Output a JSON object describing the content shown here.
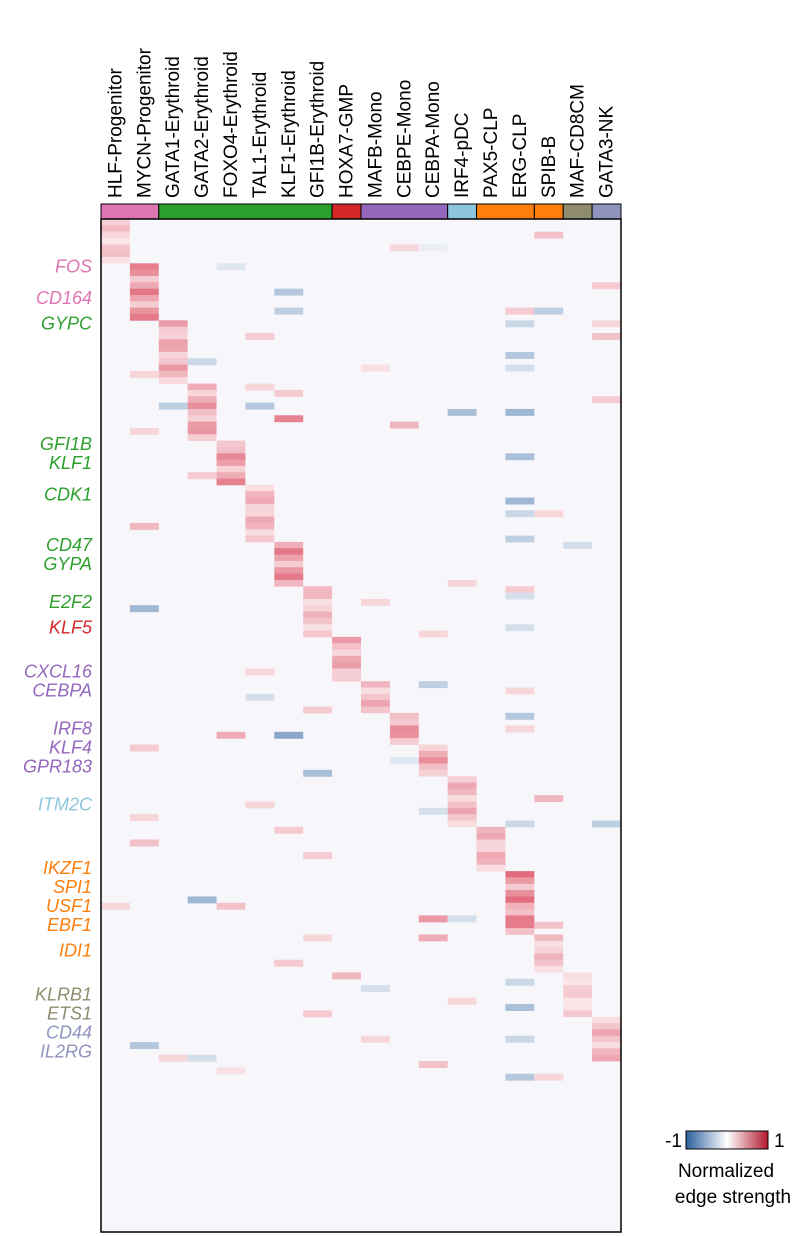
{
  "chart_data": {
    "type": "heatmap",
    "title": "",
    "columns": [
      "HLF-Progenitor",
      "MYCN-Progenitor",
      "GATA1-Erythroid",
      "GATA2-Erythroid",
      "FOXO4-Erythroid",
      "TAL1-Erythroid",
      "KLF1-Erythroid",
      "GFI1B-Erythroid",
      "HOXA7-GMP",
      "MAFB-Mono",
      "CEBPE-Mono",
      "CEBPA-Mono",
      "IRF4-pDC",
      "PAX5-CLP",
      "ERG-CLP",
      "SPIB-B",
      "MAF-CD8CM",
      "GATA3-NK"
    ],
    "groups": [
      {
        "name": "Progenitor",
        "columns": [
          0,
          1
        ],
        "color": "#df74b3"
      },
      {
        "name": "Erythroid",
        "columns": [
          2,
          3,
          4,
          5,
          6,
          7
        ],
        "color": "#2ca02c"
      },
      {
        "name": "GMP",
        "columns": [
          8
        ],
        "color": "#d62728"
      },
      {
        "name": "Mono",
        "columns": [
          9,
          10,
          11
        ],
        "color": "#9467bd"
      },
      {
        "name": "pDC",
        "columns": [
          12
        ],
        "color": "#8ec5de"
      },
      {
        "name": "CLP",
        "columns": [
          13,
          14
        ],
        "color": "#ff7f0e"
      },
      {
        "name": "B",
        "columns": [
          15
        ],
        "color": "#ff7f0e"
      },
      {
        "name": "CD8CM",
        "columns": [
          16
        ],
        "color": "#8f8c6e"
      },
      {
        "name": "NK",
        "columns": [
          17
        ],
        "color": "#8f94bf"
      }
    ],
    "n_rows": 160,
    "row_labels": [
      {
        "text": "FOS",
        "row": 7,
        "color": "#df74b3"
      },
      {
        "text": "CD164",
        "row": 12,
        "color": "#df74b3"
      },
      {
        "text": "GYPC",
        "row": 16,
        "color": "#2ca02c"
      },
      {
        "text": "GFI1B",
        "row": 35,
        "color": "#2ca02c"
      },
      {
        "text": "KLF1",
        "row": 38,
        "color": "#2ca02c"
      },
      {
        "text": "CDK1",
        "row": 43,
        "color": "#2ca02c"
      },
      {
        "text": "CD47",
        "row": 51,
        "color": "#2ca02c"
      },
      {
        "text": "GYPA",
        "row": 54,
        "color": "#2ca02c"
      },
      {
        "text": "E2F2",
        "row": 60,
        "color": "#2ca02c"
      },
      {
        "text": "KLF5",
        "row": 64,
        "color": "#d62728"
      },
      {
        "text": "CXCL16",
        "row": 71,
        "color": "#9467bd"
      },
      {
        "text": "CEBPA",
        "row": 74,
        "color": "#9467bd"
      },
      {
        "text": "IRF8",
        "row": 80,
        "color": "#9467bd"
      },
      {
        "text": "KLF4",
        "row": 83,
        "color": "#9467bd"
      },
      {
        "text": "GPR183",
        "row": 86,
        "color": "#9467bd"
      },
      {
        "text": "ITM2C",
        "row": 92,
        "color": "#8ec5de"
      },
      {
        "text": "IKZF1",
        "row": 102,
        "color": "#ff7f0e"
      },
      {
        "text": "SPI1",
        "row": 105,
        "color": "#ff7f0e"
      },
      {
        "text": "USF1",
        "row": 108,
        "color": "#ff7f0e"
      },
      {
        "text": "EBF1",
        "row": 111,
        "color": "#ff7f0e"
      },
      {
        "text": "IDI1",
        "row": 115,
        "color": "#ff7f0e"
      },
      {
        "text": "KLRB1",
        "row": 122,
        "color": "#8f8c6e"
      },
      {
        "text": "ETS1",
        "row": 125,
        "color": "#8f8c6e"
      },
      {
        "text": "CD44",
        "row": 128,
        "color": "#8f94bf"
      },
      {
        "text": "IL2RG",
        "row": 131,
        "color": "#8f94bf"
      }
    ],
    "blocks": [
      {
        "col": 0,
        "rows": [
          0,
          7
        ],
        "value": 0.3
      },
      {
        "col": 1,
        "rows": [
          7,
          16
        ],
        "value": 0.6
      },
      {
        "col": 2,
        "rows": [
          16,
          26
        ],
        "value": 0.45
      },
      {
        "col": 3,
        "rows": [
          26,
          35
        ],
        "value": 0.5
      },
      {
        "col": 4,
        "rows": [
          35,
          42
        ],
        "value": 0.55
      },
      {
        "col": 5,
        "rows": [
          42,
          51
        ],
        "value": 0.4
      },
      {
        "col": 6,
        "rows": [
          51,
          58
        ],
        "value": 0.6
      },
      {
        "col": 7,
        "rows": [
          58,
          66
        ],
        "value": 0.35
      },
      {
        "col": 8,
        "rows": [
          66,
          73
        ],
        "value": 0.45
      },
      {
        "col": 9,
        "rows": [
          73,
          78
        ],
        "value": 0.4
      },
      {
        "col": 10,
        "rows": [
          78,
          83
        ],
        "value": 0.55
      },
      {
        "col": 11,
        "rows": [
          83,
          88
        ],
        "value": 0.5
      },
      {
        "col": 12,
        "rows": [
          88,
          96
        ],
        "value": 0.4
      },
      {
        "col": 13,
        "rows": [
          96,
          103
        ],
        "value": 0.4
      },
      {
        "col": 14,
        "rows": [
          103,
          113
        ],
        "value": 0.65
      },
      {
        "col": 15,
        "rows": [
          113,
          119
        ],
        "value": 0.35
      },
      {
        "col": 16,
        "rows": [
          119,
          126
        ],
        "value": 0.25
      },
      {
        "col": 17,
        "rows": [
          126,
          133
        ],
        "value": 0.4
      }
    ],
    "spots": [
      {
        "col": 10,
        "row": 4,
        "value": 0.2
      },
      {
        "col": 11,
        "row": 4,
        "value": -0.1
      },
      {
        "col": 15,
        "row": 2,
        "value": 0.3
      },
      {
        "col": 4,
        "row": 7,
        "value": -0.15
      },
      {
        "col": 17,
        "row": 10,
        "value": 0.25
      },
      {
        "col": 6,
        "row": 11,
        "value": -0.35
      },
      {
        "col": 6,
        "row": 14,
        "value": -0.3
      },
      {
        "col": 14,
        "row": 14,
        "value": 0.25
      },
      {
        "col": 15,
        "row": 14,
        "value": -0.3
      },
      {
        "col": 17,
        "row": 16,
        "value": 0.2
      },
      {
        "col": 5,
        "row": 18,
        "value": 0.25
      },
      {
        "col": 17,
        "row": 18,
        "value": 0.3
      },
      {
        "col": 14,
        "row": 16,
        "value": -0.25
      },
      {
        "col": 14,
        "row": 21,
        "value": -0.35
      },
      {
        "col": 3,
        "row": 22,
        "value": -0.25
      },
      {
        "col": 14,
        "row": 23,
        "value": -0.2
      },
      {
        "col": 1,
        "row": 24,
        "value": 0.2
      },
      {
        "col": 9,
        "row": 23,
        "value": 0.15
      },
      {
        "col": 5,
        "row": 26,
        "value": 0.2
      },
      {
        "col": 6,
        "row": 27,
        "value": 0.25
      },
      {
        "col": 2,
        "row": 29,
        "value": -0.3
      },
      {
        "col": 5,
        "row": 29,
        "value": -0.35
      },
      {
        "col": 6,
        "row": 31,
        "value": 0.6
      },
      {
        "col": 12,
        "row": 30,
        "value": -0.4
      },
      {
        "col": 14,
        "row": 30,
        "value": -0.45
      },
      {
        "col": 10,
        "row": 32,
        "value": 0.35
      },
      {
        "col": 17,
        "row": 28,
        "value": 0.25
      },
      {
        "col": 1,
        "row": 33,
        "value": 0.2
      },
      {
        "col": 14,
        "row": 37,
        "value": -0.4
      },
      {
        "col": 3,
        "row": 40,
        "value": 0.25
      },
      {
        "col": 14,
        "row": 44,
        "value": -0.45
      },
      {
        "col": 14,
        "row": 46,
        "value": -0.25
      },
      {
        "col": 15,
        "row": 46,
        "value": 0.2
      },
      {
        "col": 1,
        "row": 48,
        "value": 0.35
      },
      {
        "col": 14,
        "row": 50,
        "value": -0.3
      },
      {
        "col": 16,
        "row": 51,
        "value": -0.2
      },
      {
        "col": 12,
        "row": 57,
        "value": 0.2
      },
      {
        "col": 14,
        "row": 58,
        "value": 0.25
      },
      {
        "col": 14,
        "row": 59,
        "value": -0.2
      },
      {
        "col": 9,
        "row": 60,
        "value": 0.2
      },
      {
        "col": 1,
        "row": 61,
        "value": -0.45
      },
      {
        "col": 14,
        "row": 64,
        "value": -0.2
      },
      {
        "col": 11,
        "row": 65,
        "value": 0.2
      },
      {
        "col": 5,
        "row": 71,
        "value": 0.2
      },
      {
        "col": 11,
        "row": 73,
        "value": -0.3
      },
      {
        "col": 14,
        "row": 74,
        "value": 0.2
      },
      {
        "col": 5,
        "row": 75,
        "value": -0.2
      },
      {
        "col": 7,
        "row": 77,
        "value": 0.25
      },
      {
        "col": 14,
        "row": 78,
        "value": -0.35
      },
      {
        "col": 4,
        "row": 81,
        "value": 0.4
      },
      {
        "col": 6,
        "row": 81,
        "value": -0.55
      },
      {
        "col": 14,
        "row": 80,
        "value": 0.2
      },
      {
        "col": 1,
        "row": 83,
        "value": 0.25
      },
      {
        "col": 10,
        "row": 85,
        "value": -0.15
      },
      {
        "col": 7,
        "row": 87,
        "value": -0.4
      },
      {
        "col": 15,
        "row": 91,
        "value": 0.35
      },
      {
        "col": 5,
        "row": 92,
        "value": 0.2
      },
      {
        "col": 1,
        "row": 94,
        "value": 0.2
      },
      {
        "col": 11,
        "row": 93,
        "value": -0.2
      },
      {
        "col": 14,
        "row": 95,
        "value": -0.25
      },
      {
        "col": 17,
        "row": 95,
        "value": -0.3
      },
      {
        "col": 6,
        "row": 96,
        "value": 0.25
      },
      {
        "col": 1,
        "row": 98,
        "value": 0.3
      },
      {
        "col": 7,
        "row": 100,
        "value": 0.25
      },
      {
        "col": 0,
        "row": 108,
        "value": 0.2
      },
      {
        "col": 3,
        "row": 107,
        "value": -0.45
      },
      {
        "col": 4,
        "row": 108,
        "value": 0.3
      },
      {
        "col": 11,
        "row": 110,
        "value": 0.5
      },
      {
        "col": 12,
        "row": 110,
        "value": -0.2
      },
      {
        "col": 15,
        "row": 111,
        "value": 0.3
      },
      {
        "col": 11,
        "row": 113,
        "value": 0.4
      },
      {
        "col": 7,
        "row": 113,
        "value": 0.2
      },
      {
        "col": 6,
        "row": 117,
        "value": 0.25
      },
      {
        "col": 8,
        "row": 119,
        "value": 0.35
      },
      {
        "col": 14,
        "row": 120,
        "value": -0.25
      },
      {
        "col": 9,
        "row": 121,
        "value": -0.2
      },
      {
        "col": 12,
        "row": 123,
        "value": 0.2
      },
      {
        "col": 14,
        "row": 124,
        "value": -0.4
      },
      {
        "col": 7,
        "row": 125,
        "value": 0.25
      },
      {
        "col": 9,
        "row": 129,
        "value": 0.2
      },
      {
        "col": 14,
        "row": 129,
        "value": -0.25
      },
      {
        "col": 1,
        "row": 130,
        "value": -0.35
      },
      {
        "col": 2,
        "row": 132,
        "value": 0.2
      },
      {
        "col": 3,
        "row": 132,
        "value": -0.2
      },
      {
        "col": 11,
        "row": 133,
        "value": 0.3
      },
      {
        "col": 14,
        "row": 135,
        "value": -0.35
      },
      {
        "col": 15,
        "row": 135,
        "value": 0.2
      },
      {
        "col": 4,
        "row": 134,
        "value": 0.15
      }
    ],
    "colorbar": {
      "min": -1,
      "max": 1,
      "min_label": "-1",
      "max_label": "1",
      "low_color": "#2b5f9e",
      "mid_color": "#ffffff",
      "high_color": "#b2182b"
    },
    "legend_title": [
      "Normalized",
      "edge strength"
    ],
    "legend_placement": "bottom-right",
    "grid": false
  }
}
